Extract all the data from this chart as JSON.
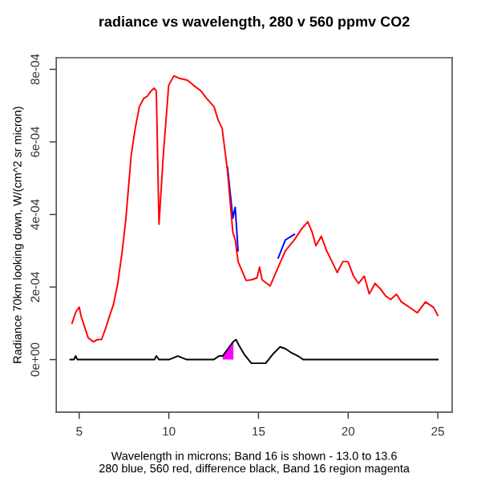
{
  "chart_data": {
    "type": "line",
    "title": "radiance vs wavelength, 280 v 560 ppmv CO2",
    "xlabel": "Wavelength in microns; Band 16 is shown - 13.0 to 13.6\n280 blue, 560 red, difference black, Band 16 region magenta",
    "ylabel": "Radiance 70km looking down, W/(cm^2 sr micron)",
    "xlim": [
      3.72,
      25.8
    ],
    "xticks": [
      5,
      10,
      15,
      20,
      25
    ],
    "ylim": [
      -0.000145,
      0.000832
    ],
    "yticks": [
      {
        "value": 0,
        "label": "0e+00"
      },
      {
        "value": 0.0002,
        "label": "2e-04"
      },
      {
        "value": 0.0004,
        "label": "4e-04"
      },
      {
        "value": 0.0006,
        "label": "6e-04"
      },
      {
        "value": 0.0008,
        "label": "8e-04"
      }
    ],
    "series": [
      {
        "color": "#0000ff",
        "x": [
          13.27,
          13.57,
          13.7,
          13.86,
          15.0,
          16.1,
          16.5,
          17.0
        ],
        "values": [
          0.00053,
          0.00039,
          0.00042,
          0.0003,
          null,
          0.00028,
          0.00033,
          0.000345
        ]
      },
      {
        "color": "#ff0000",
        "x": [
          4.6,
          4.8,
          5.0,
          5.1,
          5.3,
          5.5,
          5.8,
          6.0,
          6.25,
          6.5,
          6.7,
          6.9,
          7.15,
          7.4,
          7.6,
          7.9,
          8.1,
          8.35,
          8.6,
          8.8,
          9.0,
          9.18,
          9.3,
          9.45,
          9.69,
          9.99,
          10.28,
          10.6,
          11.03,
          11.4,
          11.78,
          12.1,
          12.52,
          12.75,
          12.97,
          13.27,
          13.57,
          13.7,
          13.86,
          14.31,
          14.6,
          14.91,
          15.06,
          15.2,
          15.65,
          16.1,
          16.5,
          17.0,
          17.4,
          17.75,
          18.0,
          18.2,
          18.5,
          18.8,
          19.1,
          19.39,
          19.7,
          19.99,
          20.3,
          20.58,
          20.9,
          21.18,
          21.5,
          21.78,
          22.1,
          22.37,
          22.7,
          22.97,
          23.4,
          23.86,
          24.31,
          24.76,
          25.0
        ],
        "values": [
          0.0001,
          0.00013,
          0.000145,
          0.00012,
          9e-05,
          6e-05,
          4.9e-05,
          5.5e-05,
          5.6e-05,
          9e-05,
          0.000122,
          0.00015,
          0.00021,
          0.0003,
          0.000387,
          0.000564,
          0.00063,
          0.000697,
          0.00072,
          0.000726,
          0.00074,
          0.000748,
          0.00074,
          0.000373,
          0.000564,
          0.000756,
          0.000782,
          0.000775,
          0.00077,
          0.000755,
          0.000741,
          0.00072,
          0.000697,
          0.00066,
          0.000638,
          0.00052,
          0.00035,
          0.00033,
          0.00027,
          0.000218,
          0.00022,
          0.000225,
          0.000255,
          0.00022,
          0.000203,
          0.000255,
          0.0003,
          0.00033,
          0.00036,
          0.00038,
          0.00035,
          0.000314,
          0.00034,
          0.0003,
          0.00027,
          0.00024,
          0.00027,
          0.00027,
          0.00023,
          0.00021,
          0.00023,
          0.000181,
          0.00021,
          0.000196,
          0.000175,
          0.000166,
          0.00018,
          0.000159,
          0.000145,
          0.000129,
          0.000159,
          0.000144,
          0.000122
        ]
      },
      {
        "color": "#000000",
        "x": [
          4.5,
          4.7,
          4.8,
          4.9,
          5.5,
          9.2,
          9.3,
          9.45,
          10.0,
          10.5,
          11.0,
          12.5,
          12.8,
          13.0,
          13.3,
          13.6,
          13.75,
          13.9,
          14.2,
          14.6,
          15.0,
          15.4,
          15.8,
          16.2,
          16.5,
          16.8,
          17.2,
          17.5,
          25.0
        ],
        "values": [
          0,
          0,
          1e-05,
          0,
          0,
          0,
          1e-05,
          0,
          0,
          1e-05,
          0,
          0,
          1e-05,
          1e-05,
          3e-05,
          5e-05,
          5.5e-05,
          4e-05,
          1.5e-05,
          -1e-05,
          -1e-05,
          -1e-05,
          1.5e-05,
          3.5e-05,
          3e-05,
          2e-05,
          1e-05,
          0,
          0
        ]
      },
      {
        "type": "area",
        "color": "#ff00ff",
        "x": [
          13.0,
          13.3,
          13.6
        ],
        "values": [
          1e-05,
          3e-05,
          5e-05
        ]
      }
    ]
  }
}
